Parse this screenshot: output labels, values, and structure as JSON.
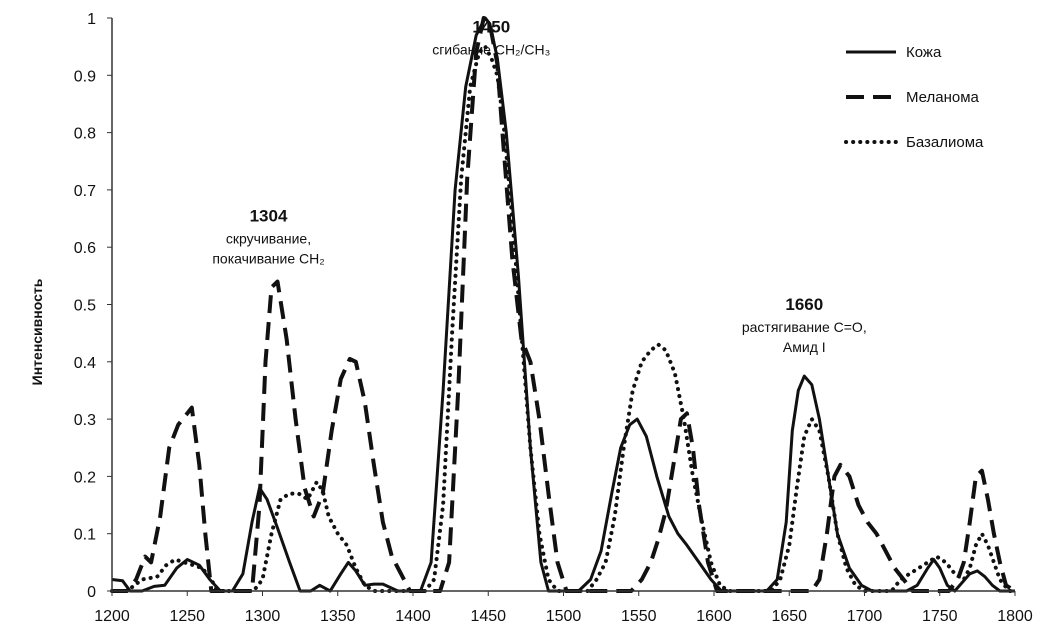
{
  "chart_data": {
    "type": "line",
    "title": "",
    "xlabel": "",
    "ylabel": "Интенсивность",
    "xlim": [
      1200,
      1800
    ],
    "ylim": [
      0,
      1
    ],
    "x_ticks": [
      1200,
      1250,
      1300,
      1350,
      1400,
      1450,
      1500,
      1550,
      1600,
      1650,
      1700,
      1750,
      1800
    ],
    "y_ticks": [
      "0",
      "0.1",
      "0.2",
      "0.3",
      "0.4",
      "0.5",
      "0.6",
      "0.7",
      "0.8",
      "0.9",
      "1"
    ],
    "grid": false,
    "legend_position": "top-right",
    "series": [
      {
        "name": "Кожа",
        "style": "solid",
        "x": [
          1200,
          1207,
          1212,
          1220,
          1228,
          1235,
          1243,
          1250,
          1258,
          1265,
          1272,
          1280,
          1287,
          1293,
          1298,
          1303,
          1310,
          1318,
          1325,
          1332,
          1338,
          1345,
          1352,
          1357,
          1362,
          1368,
          1374,
          1380,
          1390,
          1398,
          1405,
          1412,
          1420,
          1428,
          1435,
          1442,
          1448,
          1451,
          1456,
          1462,
          1470,
          1478,
          1485,
          1490,
          1496,
          1502,
          1510,
          1518,
          1525,
          1532,
          1538,
          1544,
          1549,
          1555,
          1562,
          1570,
          1576,
          1582,
          1590,
          1598,
          1605,
          1612,
          1620,
          1628,
          1635,
          1642,
          1648,
          1652,
          1656,
          1660,
          1665,
          1670,
          1676,
          1682,
          1690,
          1698,
          1705,
          1712,
          1720,
          1728,
          1735,
          1742,
          1746,
          1750,
          1755,
          1760,
          1765,
          1770,
          1775,
          1780,
          1785,
          1790,
          1795,
          1800
        ],
        "values": [
          0.02,
          0.018,
          0.0,
          0.0,
          0.008,
          0.01,
          0.04,
          0.055,
          0.045,
          0.02,
          0.0,
          0.0,
          0.03,
          0.12,
          0.18,
          0.16,
          0.11,
          0.05,
          0.0,
          0.0,
          0.01,
          0.0,
          0.03,
          0.05,
          0.035,
          0.01,
          0.012,
          0.012,
          0.0,
          0.0,
          0.0,
          0.05,
          0.35,
          0.7,
          0.88,
          0.97,
          1.0,
          0.99,
          0.93,
          0.8,
          0.55,
          0.25,
          0.05,
          0.0,
          0.0,
          0.0,
          0.0,
          0.02,
          0.07,
          0.17,
          0.25,
          0.29,
          0.3,
          0.27,
          0.2,
          0.13,
          0.1,
          0.08,
          0.05,
          0.02,
          0.0,
          0.0,
          0.0,
          0.0,
          0.0,
          0.02,
          0.12,
          0.28,
          0.35,
          0.375,
          0.36,
          0.3,
          0.2,
          0.1,
          0.04,
          0.01,
          0.0,
          0.0,
          0.0,
          0.0,
          0.01,
          0.04,
          0.055,
          0.04,
          0.01,
          0.0,
          0.015,
          0.03,
          0.035,
          0.025,
          0.01,
          0.0,
          0.0,
          0.0
        ]
      },
      {
        "name": "Меланома",
        "style": "dashed",
        "x": [
          1200,
          1210,
          1216,
          1222,
          1226,
          1232,
          1238,
          1244,
          1250,
          1253,
          1258,
          1262,
          1266,
          1270,
          1275,
          1280,
          1287,
          1293,
          1298,
          1302,
          1306,
          1310,
          1316,
          1322,
          1328,
          1334,
          1340,
          1346,
          1352,
          1358,
          1362,
          1368,
          1374,
          1380,
          1386,
          1392,
          1398,
          1405,
          1412,
          1418,
          1424,
          1430,
          1436,
          1442,
          1447,
          1451,
          1456,
          1460,
          1466,
          1472,
          1478,
          1484,
          1490,
          1496,
          1502,
          1508,
          1515,
          1525,
          1535,
          1545,
          1552,
          1558,
          1563,
          1568,
          1573,
          1578,
          1582,
          1586,
          1590,
          1596,
          1602,
          1608,
          1614,
          1620,
          1626,
          1632,
          1640,
          1648,
          1655,
          1660,
          1665,
          1670,
          1675,
          1680,
          1684,
          1690,
          1696,
          1702,
          1708,
          1714,
          1720,
          1726,
          1732,
          1738,
          1744,
          1750,
          1756,
          1762,
          1766,
          1770,
          1774,
          1778,
          1782,
          1786,
          1790,
          1794,
          1800
        ],
        "values": [
          0.0,
          0.0,
          0.02,
          0.06,
          0.05,
          0.13,
          0.25,
          0.29,
          0.31,
          0.32,
          0.22,
          0.1,
          0.0,
          0.0,
          0.0,
          0.0,
          0.0,
          0.0,
          0.15,
          0.4,
          0.53,
          0.54,
          0.44,
          0.3,
          0.18,
          0.13,
          0.17,
          0.28,
          0.37,
          0.405,
          0.4,
          0.33,
          0.22,
          0.12,
          0.06,
          0.03,
          0.0,
          0.0,
          0.0,
          0.0,
          0.05,
          0.35,
          0.72,
          0.94,
          1.0,
          0.99,
          0.92,
          0.78,
          0.58,
          0.44,
          0.4,
          0.3,
          0.17,
          0.05,
          0.0,
          0.0,
          0.0,
          0.0,
          0.0,
          0.0,
          0.02,
          0.05,
          0.09,
          0.14,
          0.22,
          0.3,
          0.31,
          0.25,
          0.15,
          0.05,
          0.0,
          0.0,
          0.0,
          0.0,
          0.0,
          0.0,
          0.0,
          0.0,
          0.0,
          0.0,
          0.0,
          0.02,
          0.1,
          0.2,
          0.22,
          0.2,
          0.15,
          0.12,
          0.1,
          0.07,
          0.04,
          0.02,
          0.0,
          0.0,
          0.0,
          0.0,
          0.0,
          0.02,
          0.05,
          0.12,
          0.2,
          0.21,
          0.16,
          0.1,
          0.05,
          0.01,
          0.0
        ]
      },
      {
        "name": "Базалиома",
        "style": "dotted",
        "x": [
          1200,
          1210,
          1220,
          1230,
          1236,
          1242,
          1248,
          1254,
          1260,
          1266,
          1270,
          1276,
          1282,
          1288,
          1294,
          1300,
          1306,
          1312,
          1318,
          1324,
          1330,
          1336,
          1340,
          1344,
          1350,
          1356,
          1362,
          1368,
          1374,
          1380,
          1390,
          1400,
          1408,
          1414,
          1420,
          1426,
          1432,
          1438,
          1444,
          1448,
          1452,
          1456,
          1460,
          1466,
          1472,
          1478,
          1484,
          1490,
          1496,
          1502,
          1510,
          1516,
          1522,
          1528,
          1534,
          1540,
          1546,
          1552,
          1558,
          1563,
          1568,
          1574,
          1580,
          1586,
          1592,
          1598,
          1604,
          1610,
          1615,
          1620,
          1626,
          1632,
          1638,
          1644,
          1650,
          1655,
          1660,
          1665,
          1670,
          1676,
          1682,
          1688,
          1694,
          1700,
          1710,
          1718,
          1724,
          1730,
          1736,
          1742,
          1748,
          1754,
          1760,
          1766,
          1770,
          1774,
          1778,
          1782,
          1786,
          1790,
          1796,
          1800
        ],
        "values": [
          0.0,
          0.0,
          0.02,
          0.025,
          0.045,
          0.055,
          0.05,
          0.045,
          0.04,
          0.02,
          0.0,
          0.0,
          0.0,
          0.0,
          0.0,
          0.02,
          0.1,
          0.16,
          0.17,
          0.17,
          0.16,
          0.19,
          0.175,
          0.13,
          0.1,
          0.08,
          0.04,
          0.01,
          0.0,
          0.0,
          0.0,
          0.0,
          0.0,
          0.02,
          0.15,
          0.45,
          0.72,
          0.88,
          0.94,
          0.95,
          0.93,
          0.9,
          0.82,
          0.65,
          0.45,
          0.25,
          0.1,
          0.02,
          0.0,
          0.0,
          0.0,
          0.0,
          0.02,
          0.05,
          0.13,
          0.25,
          0.35,
          0.4,
          0.42,
          0.43,
          0.42,
          0.38,
          0.3,
          0.2,
          0.12,
          0.05,
          0.01,
          0.0,
          0.0,
          0.0,
          0.0,
          0.0,
          0.0,
          0.02,
          0.08,
          0.18,
          0.27,
          0.3,
          0.28,
          0.2,
          0.1,
          0.04,
          0.01,
          0.0,
          0.0,
          0.0,
          0.02,
          0.03,
          0.04,
          0.05,
          0.06,
          0.05,
          0.03,
          0.02,
          0.04,
          0.08,
          0.1,
          0.08,
          0.05,
          0.02,
          0.0,
          0.0
        ]
      }
    ],
    "annotations": [
      {
        "x": 1304,
        "y": 0.645,
        "head": "1304",
        "lines": [
          "скручивание,",
          "покачивание CH₂"
        ]
      },
      {
        "x": 1452,
        "y": 0.975,
        "head": "1450",
        "lines": [
          "сгибание CH₂/CH₃"
        ]
      },
      {
        "x": 1660,
        "y": 0.49,
        "head": "1660",
        "lines": [
          "растягивание C=O,",
          "Амид I"
        ]
      }
    ]
  }
}
